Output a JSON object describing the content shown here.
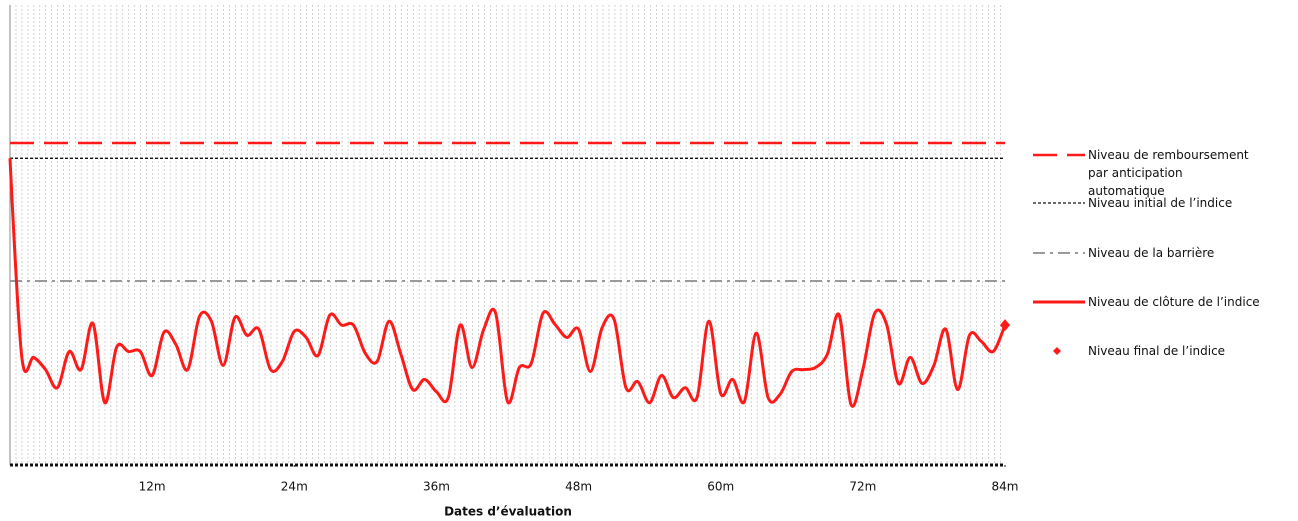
{
  "chart_data": {
    "type": "line",
    "xlabel": "Dates d’évaluation",
    "xlim": [
      0,
      84
    ],
    "ylim": [
      0,
      150
    ],
    "xticks": [
      {
        "value": 12,
        "label": "12m"
      },
      {
        "value": 24,
        "label": "24m"
      },
      {
        "value": 36,
        "label": "36m"
      },
      {
        "value": 48,
        "label": "48m"
      },
      {
        "value": 60,
        "label": "60m"
      },
      {
        "value": 72,
        "label": "72m"
      },
      {
        "value": 84,
        "label": "84m"
      }
    ],
    "levels": [
      {
        "name": "Niveau de remboursement par anticipation automatique",
        "color": "#ff1a1a",
        "value": 105,
        "dash": "long"
      },
      {
        "name": "Niveau initial de l’indice",
        "color": "#111111",
        "value": 100,
        "dash": "short"
      },
      {
        "name": "Niveau de la barrière",
        "color": "#8c8c8c",
        "value": 60,
        "dash": "dashdot"
      }
    ],
    "series": [
      {
        "name": "Niveau de clôture de l’indice",
        "color": "#ff1a1a",
        "x": [
          0,
          1,
          2,
          3,
          4,
          5,
          6,
          7,
          8,
          9,
          10,
          11,
          12,
          13,
          14,
          15,
          16,
          17,
          18,
          19,
          20,
          21,
          22,
          23,
          24,
          25,
          26,
          27,
          28,
          29,
          30,
          31,
          32,
          33,
          34,
          35,
          36,
          37,
          38,
          39,
          40,
          41,
          42,
          43,
          44,
          45,
          46,
          47,
          48,
          49,
          50,
          51,
          52,
          53,
          54,
          55,
          56,
          57,
          58,
          59,
          60,
          61,
          62,
          63,
          64,
          65,
          66,
          67,
          68,
          69,
          70,
          71,
          72,
          73,
          74,
          75,
          76,
          77,
          78,
          79,
          80,
          81,
          82,
          83,
          84
        ],
        "values": [
          100,
          35.1,
          35.1,
          31.1,
          25.2,
          37.0,
          31.1,
          46.2,
          20.3,
          38.4,
          37.0,
          37.0,
          29.2,
          43.3,
          39.3,
          31.1,
          48.5,
          46.9,
          32.5,
          48.2,
          42.3,
          44.3,
          31.1,
          33.8,
          43.6,
          41.6,
          35.7,
          48.9,
          45.6,
          45.6,
          36.4,
          33.8,
          46.9,
          36.1,
          24.6,
          27.9,
          23.9,
          22.0,
          45.6,
          31.8,
          44.3,
          49.5,
          20.7,
          31.8,
          33.1,
          49.5,
          45.9,
          41.6,
          44.3,
          30.5,
          44.9,
          47.5,
          25.2,
          27.2,
          20.3,
          29.2,
          22.0,
          25.2,
          22.0,
          46.9,
          23.3,
          27.9,
          20.7,
          43.0,
          22.0,
          23.0,
          30.5,
          31.1,
          31.8,
          36.1,
          48.9,
          19.7,
          31.1,
          49.5,
          45.9,
          26.6,
          35.1,
          26.6,
          32.5,
          44.3,
          24.6,
          42.3,
          40.3,
          37.0,
          45.6
        ]
      }
    ],
    "final": {
      "name": "Niveau final de l’indice",
      "color": "#ff1a1a",
      "x": 84,
      "value": 45.6
    }
  }
}
